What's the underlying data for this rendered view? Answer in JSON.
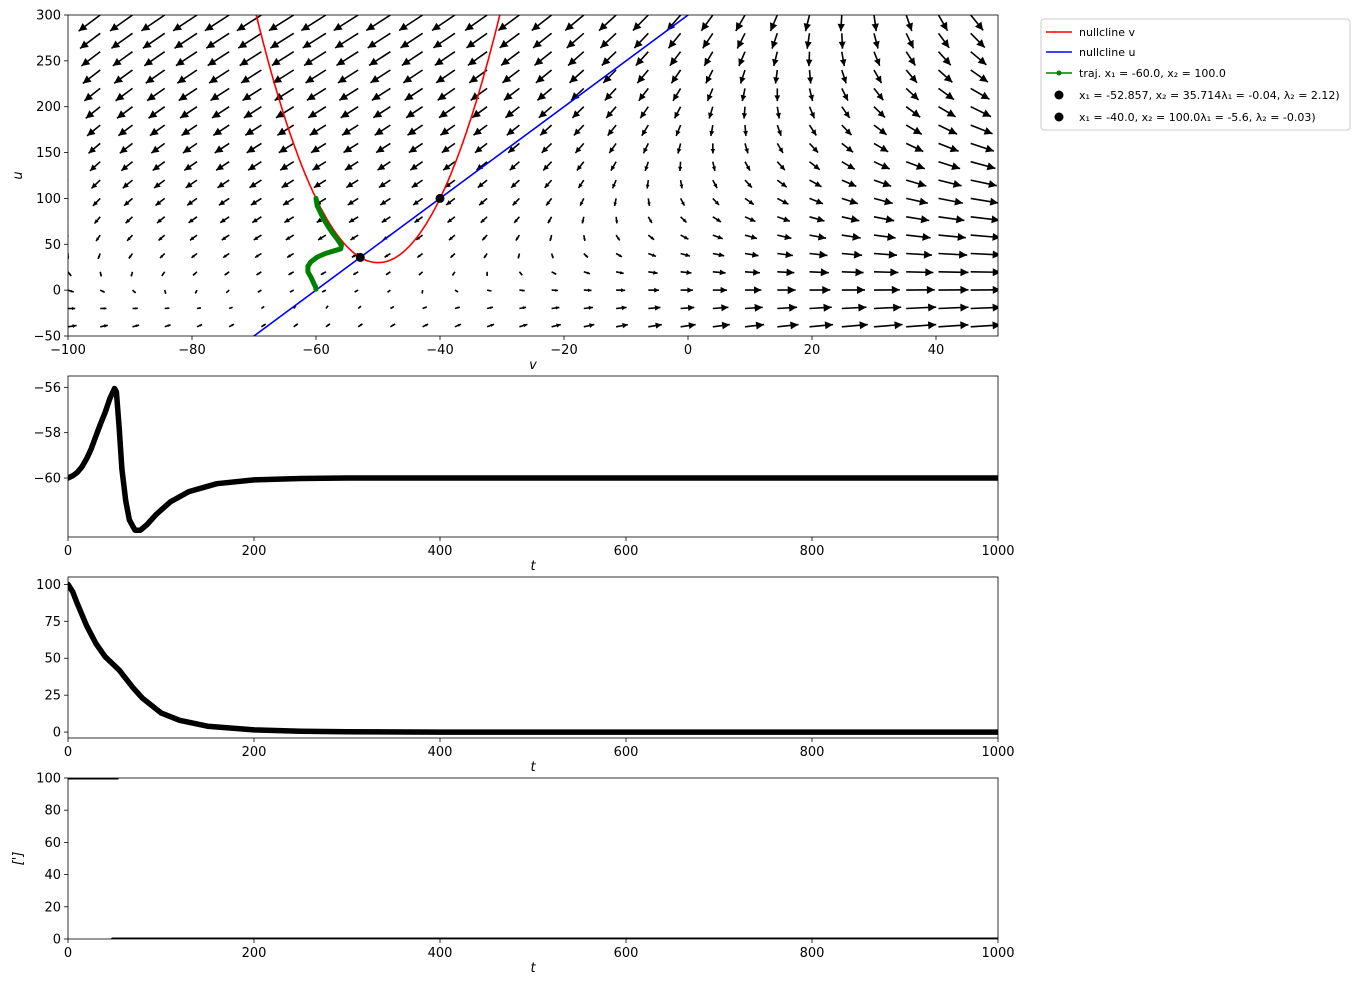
{
  "chart_data": [
    {
      "type": "line",
      "subtype": "phase-plane",
      "xlabel": "v",
      "ylabel": "u",
      "xlim": [
        -100,
        50
      ],
      "ylim": [
        -50,
        300
      ],
      "xticks": [
        -100,
        -80,
        -60,
        -40,
        -20,
        0,
        20,
        40
      ],
      "yticks": [
        -50,
        0,
        50,
        100,
        150,
        200,
        250,
        300
      ],
      "grid": false,
      "legend_placement": "outside-top-right",
      "nullcline_v": {
        "label": "nullcline v",
        "color": "#ff0000",
        "vertex_v": -50,
        "vertex_u": 30,
        "curvature": 0.7
      },
      "nullcline_u": {
        "label": "nullcline u",
        "color": "#0000ff",
        "slope": 5,
        "intercept_v": -60
      },
      "trajectory": {
        "label": "traj. x₁ = -60.0, x₂ = 100.0",
        "color": "#008000",
        "points": [
          [
            -60,
            100
          ],
          [
            -59.8,
            92
          ],
          [
            -59.3,
            85
          ],
          [
            -58.8,
            78
          ],
          [
            -58.2,
            71
          ],
          [
            -57.4,
            63
          ],
          [
            -56.5,
            55
          ],
          [
            -55.9,
            49
          ],
          [
            -56,
            45
          ],
          [
            -57,
            43
          ],
          [
            -58.5,
            40
          ],
          [
            -59.8,
            36
          ],
          [
            -60.8,
            31
          ],
          [
            -61.3,
            26
          ],
          [
            -61.3,
            20
          ],
          [
            -60.8,
            14
          ],
          [
            -60.4,
            8
          ],
          [
            -60.1,
            4
          ],
          [
            -60,
            1
          ]
        ]
      },
      "fixed_points": [
        {
          "v": -52.857,
          "u": 35.714,
          "label": "x₁ = -52.857, x₂ = 35.714λ₁ = -0.04, λ₂ = 2.12)",
          "color": "#000000"
        },
        {
          "v": -40.0,
          "u": 100.0,
          "label": "x₁ = -40.0, x₂ = 100.0λ₁ = -5.6, λ₂ = -0.03)",
          "color": "#000000"
        }
      ],
      "quiver": {
        "x_start": -100,
        "x_step": 5.2,
        "x_count": 29,
        "y_values": [
          300,
          280,
          260,
          240,
          220,
          200,
          180,
          160,
          140,
          120,
          100,
          80,
          60,
          40,
          20,
          0,
          -20,
          -40
        ],
        "color": "#000000"
      }
    },
    {
      "type": "line",
      "xlabel": "t",
      "ylabel": "",
      "xlim": [
        0,
        1000
      ],
      "ylim": [
        -62.6,
        -55.5
      ],
      "xticks": [
        0,
        200,
        400,
        600,
        800,
        1000
      ],
      "yticks": [
        -60,
        -58,
        -56
      ],
      "color": "#000000",
      "points": [
        [
          0,
          -60
        ],
        [
          5,
          -59.9
        ],
        [
          10,
          -59.75
        ],
        [
          15,
          -59.5
        ],
        [
          20,
          -59.15
        ],
        [
          25,
          -58.7
        ],
        [
          30,
          -58.15
        ],
        [
          35,
          -57.6
        ],
        [
          40,
          -57.1
        ],
        [
          45,
          -56.5
        ],
        [
          50,
          -56.05
        ],
        [
          52,
          -56.2
        ],
        [
          55,
          -57.8
        ],
        [
          58,
          -59.6
        ],
        [
          62,
          -61
        ],
        [
          66,
          -61.85
        ],
        [
          72,
          -62.3
        ],
        [
          78,
          -62.3
        ],
        [
          85,
          -62.05
        ],
        [
          95,
          -61.6
        ],
        [
          110,
          -61.05
        ],
        [
          130,
          -60.6
        ],
        [
          160,
          -60.25
        ],
        [
          200,
          -60.08
        ],
        [
          250,
          -60.02
        ],
        [
          300,
          -60
        ],
        [
          1000,
          -60
        ]
      ]
    },
    {
      "type": "line",
      "xlabel": "t",
      "ylabel": "",
      "xlim": [
        0,
        1000
      ],
      "ylim": [
        -4,
        105
      ],
      "xticks": [
        0,
        200,
        400,
        600,
        800,
        1000
      ],
      "yticks": [
        0,
        25,
        50,
        75,
        100
      ],
      "color": "#000000",
      "points": [
        [
          0,
          100
        ],
        [
          5,
          95
        ],
        [
          10,
          87
        ],
        [
          20,
          72
        ],
        [
          30,
          60
        ],
        [
          40,
          51
        ],
        [
          50,
          45
        ],
        [
          55,
          42
        ],
        [
          60,
          38
        ],
        [
          70,
          30
        ],
        [
          80,
          23
        ],
        [
          90,
          18
        ],
        [
          100,
          13
        ],
        [
          120,
          8
        ],
        [
          150,
          4
        ],
        [
          200,
          1.5
        ],
        [
          250,
          0.6
        ],
        [
          300,
          0.2
        ],
        [
          400,
          0
        ],
        [
          1000,
          0
        ]
      ]
    },
    {
      "type": "line",
      "xlabel": "t",
      "ylabel": "[']",
      "xlim": [
        0,
        1000
      ],
      "ylim": [
        0,
        100
      ],
      "xticks": [
        0,
        200,
        400,
        600,
        800,
        1000
      ],
      "yticks": [
        0,
        20,
        40,
        60,
        80,
        100
      ],
      "color": "#000000",
      "segments": [
        [
          [
            0,
            100
          ],
          [
            53,
            100
          ]
        ],
        [
          [
            48,
            0
          ],
          [
            1000,
            0
          ]
        ]
      ]
    }
  ]
}
